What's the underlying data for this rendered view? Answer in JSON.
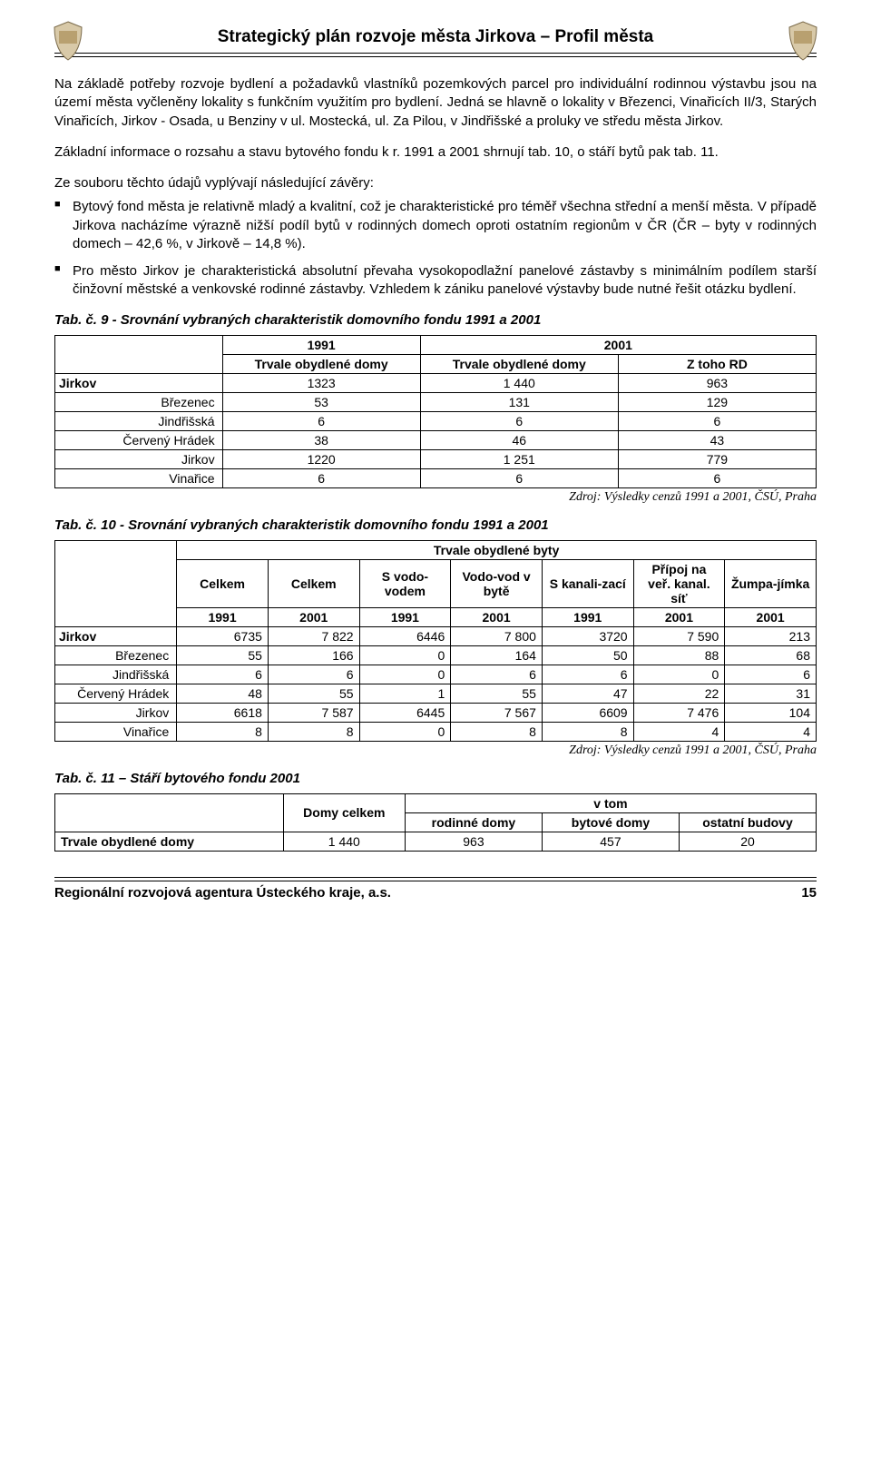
{
  "header": {
    "title": "Strategický plán rozvoje města Jirkova – Profil města"
  },
  "paragraphs": {
    "p1": "Na základě potřeby rozvoje bydlení a požadavků vlastníků pozemkových parcel pro individuální rodinnou výstavbu jsou na území města vyčleněny lokality s funkčním využitím pro bydlení. Jedná se hlavně o lokality v Březenci, Vinařicích II/3, Starých Vinařicích, Jirkov - Osada, u Benziny v ul. Mostecká, ul. Za Pilou, v Jindřišské a proluky ve středu města Jirkov.",
    "p2": "Základní informace o rozsahu a stavu bytového fondu k r. 1991 a 2001 shrnují tab. 10, o stáří bytů pak tab. 11.",
    "p3": "Ze souboru těchto údajů vyplývají následující závěry:"
  },
  "bullets": {
    "b1": "Bytový fond města je relativně mladý a kvalitní, což je charakteristické pro téměř všechna střední a menší města. V případě Jirkova nacházíme výrazně nižší podíl bytů v rodinných domech oproti ostatním regionům v ČR (ČR – byty v rodinných domech – 42,6 %, v Jirkově – 14,8 %).",
    "b2": "Pro město Jirkov je charakteristická absolutní převaha vysokopodlažní panelové zástavby s minimálním podílem starší činžovní městské a venkovské rodinné zástavby. Vzhledem k zániku panelové výstavby bude nutné řešit otázku bydlení."
  },
  "tab9": {
    "caption": "Tab. č. 9  - Srovnání vybraných charakteristik domovního fondu 1991 a 2001",
    "headers": {
      "y1991": "1991",
      "y2001": "2001",
      "tod": "Trvale obydlené domy",
      "ztoho": "Z toho RD"
    },
    "rows": [
      {
        "label": "Jirkov",
        "bold": true,
        "v": [
          "1323",
          "1 440",
          "963"
        ]
      },
      {
        "label": "Březenec",
        "v": [
          "53",
          "131",
          "129"
        ]
      },
      {
        "label": "Jindřišská",
        "v": [
          "6",
          "6",
          "6"
        ]
      },
      {
        "label": "Červený Hrádek",
        "v": [
          "38",
          "46",
          "43"
        ]
      },
      {
        "label": "Jirkov",
        "v": [
          "1220",
          "1 251",
          "779"
        ]
      },
      {
        "label": "Vinařice",
        "v": [
          "6",
          "6",
          "6"
        ]
      }
    ],
    "source": "Zdroj: Výsledky cenzů 1991 a 2001, ČSÚ, Praha"
  },
  "tab10": {
    "caption": "Tab. č. 10 - Srovnání vybraných charakteristik domovního fondu 1991 a 2001",
    "headers": {
      "top": "Trvale obydlené byty",
      "celkem": "Celkem",
      "svodo": "S vodo-vodem",
      "vodov": "Vodo-vod v bytě",
      "skanal": "S kanali-zací",
      "pripoj": "Přípoj na veř. kanal. síť",
      "zumpa": "Žumpa-jímka",
      "y1991": "1991",
      "y2001": "2001"
    },
    "rows": [
      {
        "label": "Jirkov",
        "bold": true,
        "v": [
          "6735",
          "7 822",
          "6446",
          "7 800",
          "3720",
          "7 590",
          "213"
        ]
      },
      {
        "label": "Březenec",
        "v": [
          "55",
          "166",
          "0",
          "164",
          "50",
          "88",
          "68"
        ]
      },
      {
        "label": "Jindřišská",
        "v": [
          "6",
          "6",
          "0",
          "6",
          "6",
          "0",
          "6"
        ]
      },
      {
        "label": "Červený Hrádek",
        "v": [
          "48",
          "55",
          "1",
          "55",
          "47",
          "22",
          "31"
        ]
      },
      {
        "label": "Jirkov",
        "v": [
          "6618",
          "7 587",
          "6445",
          "7 567",
          "6609",
          "7 476",
          "104"
        ]
      },
      {
        "label": "Vinařice",
        "v": [
          "8",
          "8",
          "0",
          "8",
          "8",
          "4",
          "4"
        ]
      }
    ],
    "source": "Zdroj: Výsledky cenzů 1991 a 2001, ČSÚ, Praha"
  },
  "tab11": {
    "caption": "Tab. č. 11 – Stáří bytového fondu 2001",
    "headers": {
      "domy": "Domy celkem",
      "vtom": "v tom",
      "rodinne": "rodinné domy",
      "bytove": "bytové domy",
      "ostatni": "ostatní budovy"
    },
    "rows": [
      {
        "label": "Trvale obydlené domy",
        "bold": true,
        "v": [
          "1 440",
          "963",
          "457",
          "20"
        ]
      }
    ]
  },
  "footer": {
    "agency": "Regionální rozvojová agentura Ústeckého kraje, a.s.",
    "page": "15"
  }
}
